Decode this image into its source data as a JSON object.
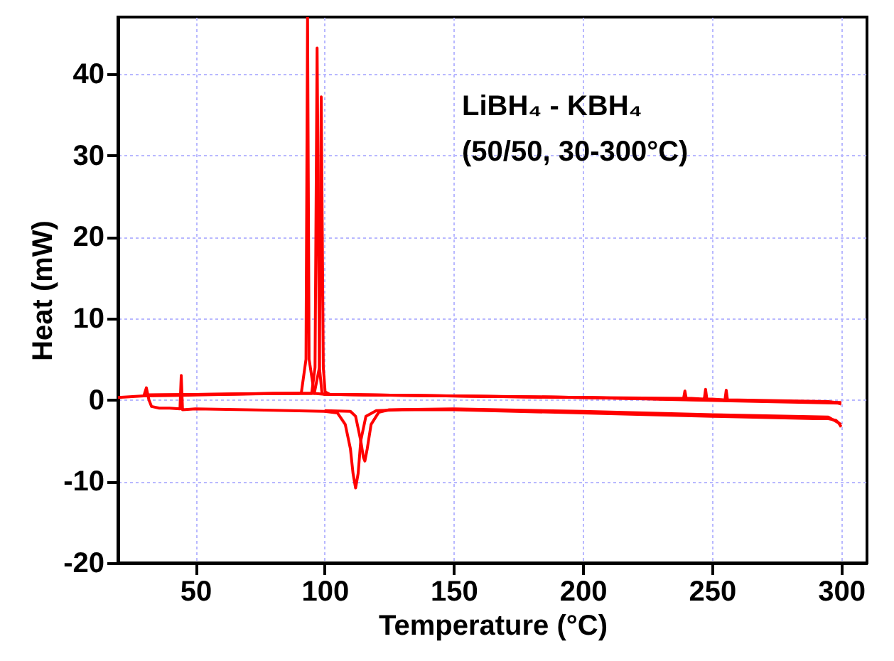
{
  "chart_data": {
    "type": "line",
    "xlabel": "Temperature (°C)",
    "ylabel": "Heat (mW)",
    "annotations": [
      "LiBH₄ - KBH₄",
      "(50/50, 30-300°C)"
    ],
    "xlim": [
      20,
      310
    ],
    "xticks": [
      50,
      100,
      150,
      200,
      250,
      300
    ],
    "ylim": [
      -20,
      47
    ],
    "yticks": [
      -20,
      -10,
      0,
      10,
      20,
      30,
      40
    ],
    "grid": true,
    "series": [
      {
        "color": "#ff0000",
        "x": [
          30,
          31,
          32,
          33,
          36,
          40,
          44,
          44.5,
          45,
          50,
          70,
          100,
          105,
          108,
          110,
          111,
          112,
          113,
          114,
          116,
          120,
          130,
          150,
          200,
          250,
          290,
          295,
          298,
          299,
          300
        ],
        "values": [
          0.5,
          1.5,
          0,
          -0.8,
          -1,
          -1,
          -1.1,
          3,
          -1.2,
          -1.1,
          -1.2,
          -1.4,
          -1.6,
          -3,
          -6,
          -9,
          -10.8,
          -9,
          -5,
          -2,
          -1.3,
          -1.2,
          -1.2,
          -1.6,
          -2,
          -2.3,
          -2.3,
          -2.5,
          -2.8,
          -3.3
        ]
      },
      {
        "color": "#ff0000",
        "x": [
          100,
          110,
          112,
          114,
          115,
          115.6,
          116.5,
          118,
          121,
          125,
          150,
          200,
          250,
          295,
          300
        ],
        "values": [
          -1.3,
          -1.4,
          -2,
          -5,
          -7,
          -7.5,
          -6,
          -3,
          -1.5,
          -1.2,
          -1.1,
          -1.4,
          -1.8,
          -2.1,
          -3
        ]
      },
      {
        "color": "#ff0000",
        "x": [
          300,
          298,
          295,
          260,
          256,
          255.5,
          255,
          250,
          248,
          247.5,
          247,
          242,
          240,
          239.5,
          239,
          200,
          150,
          120,
          100,
          96,
          94,
          93.4,
          92.8,
          91,
          90,
          80,
          50,
          30,
          20
        ],
        "values": [
          -0.5,
          -0.3,
          -0.2,
          0,
          0,
          1.2,
          0,
          0.1,
          0.1,
          1.3,
          0.1,
          0.2,
          0.2,
          1.1,
          0.2,
          0.3,
          0.5,
          0.6,
          0.7,
          0.8,
          5,
          47,
          5,
          0.9,
          0.8,
          0.8,
          0.6,
          0.5,
          0.3
        ]
      },
      {
        "color": "#ff0000",
        "x": [
          300,
          200,
          120,
          100,
          99,
          98,
          97.1,
          96.3,
          95,
          92,
          80,
          30
        ],
        "values": [
          -0.4,
          0.3,
          0.6,
          0.7,
          0.8,
          4,
          43.2,
          4,
          0.8,
          0.8,
          0.8,
          0.6
        ]
      },
      {
        "color": "#ff0000",
        "x": [
          300,
          200,
          120,
          102,
          100.2,
          99.5,
          98.7,
          98,
          96,
          90,
          30
        ],
        "values": [
          -0.3,
          0.3,
          0.6,
          0.7,
          1,
          4,
          37.2,
          4,
          0.8,
          0.8,
          0.6
        ]
      }
    ]
  }
}
